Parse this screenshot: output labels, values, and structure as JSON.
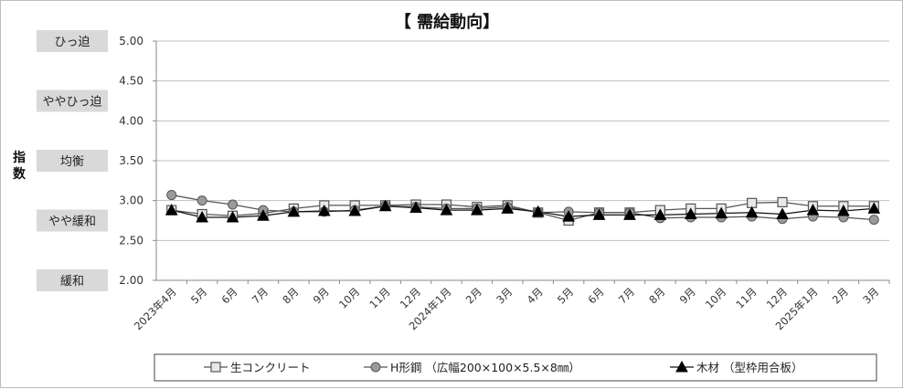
{
  "chart_data": {
    "type": "line",
    "title": "【 需給動向】",
    "ylabel": "指数",
    "ylim": [
      2.0,
      5.0
    ],
    "yticks": [
      "2.00",
      "2.50",
      "3.00",
      "3.50",
      "4.00",
      "4.50",
      "5.00"
    ],
    "bands": [
      {
        "label": "ひっ迫",
        "value": 5.0
      },
      {
        "label": "ややひっ迫",
        "value": 4.25
      },
      {
        "label": "均衡",
        "value": 3.5
      },
      {
        "label": "やや緩和",
        "value": 2.75
      },
      {
        "label": "緩和",
        "value": 2.0
      }
    ],
    "categories": [
      "2023年4月",
      "5月",
      "6月",
      "7月",
      "8月",
      "9月",
      "10月",
      "11月",
      "12月",
      "2024年1月",
      "2月",
      "3月",
      "4月",
      "5月",
      "6月",
      "7月",
      "8月",
      "9月",
      "10月",
      "11月",
      "12月",
      "2025年1月",
      "2月",
      "3月"
    ],
    "series": [
      {
        "name": "生コンクリート",
        "marker": "square",
        "color": "#555555",
        "values": [
          2.88,
          2.83,
          2.81,
          2.84,
          2.9,
          2.94,
          2.94,
          2.94,
          2.95,
          2.95,
          2.92,
          2.94,
          2.85,
          2.75,
          2.85,
          2.85,
          2.88,
          2.9,
          2.9,
          2.97,
          2.98,
          2.93,
          2.93,
          2.93
        ]
      },
      {
        "name": "H形鋼 （広幅200×100×5.5×8㎜）",
        "marker": "circle",
        "color": "#555555",
        "values": [
          3.07,
          3.0,
          2.95,
          2.88,
          2.86,
          2.86,
          2.88,
          2.93,
          2.92,
          2.9,
          2.9,
          2.92,
          2.85,
          2.86,
          2.85,
          2.85,
          2.78,
          2.79,
          2.79,
          2.8,
          2.77,
          2.8,
          2.79,
          2.76
        ]
      },
      {
        "name": "木材 （型枠用合板）",
        "marker": "triangle",
        "color": "#111111",
        "values": [
          2.88,
          2.79,
          2.79,
          2.81,
          2.86,
          2.87,
          2.87,
          2.93,
          2.91,
          2.88,
          2.88,
          2.9,
          2.86,
          2.8,
          2.82,
          2.82,
          2.82,
          2.83,
          2.84,
          2.85,
          2.83,
          2.88,
          2.87,
          2.9
        ]
      }
    ],
    "grid": true,
    "legend": "bottom"
  }
}
